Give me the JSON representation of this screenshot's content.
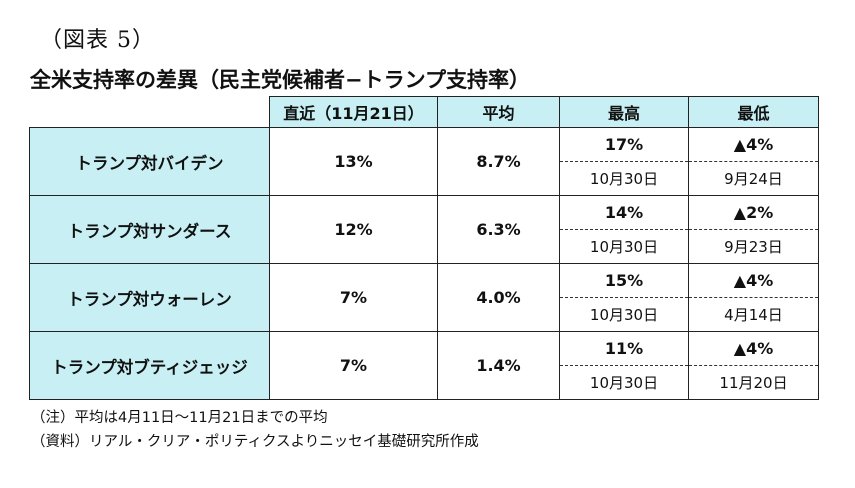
{
  "figure_label": "（図表 5）",
  "table_title": "全米支持率の差異（民主党候補者−トランプ支持率）",
  "headers": {
    "recent": "直近（11月21日）",
    "average": "平均",
    "max": "最高",
    "min": "最低"
  },
  "rows": [
    {
      "candidate": "トランプ対バイデン",
      "recent": "13%",
      "average": "8.7%",
      "max_value": "17%",
      "min_value": "▲4%",
      "max_date": "10月30日",
      "min_date": "9月24日"
    },
    {
      "candidate": "トランプ対サンダース",
      "recent": "12%",
      "average": "6.3%",
      "max_value": "14%",
      "min_value": "▲2%",
      "max_date": "10月30日",
      "min_date": "9月23日"
    },
    {
      "candidate": "トランプ対ウォーレン",
      "recent": "7%",
      "average": "4.0%",
      "max_value": "15%",
      "min_value": "▲4%",
      "max_date": "10月30日",
      "min_date": "4月14日"
    },
    {
      "candidate": "トランプ対ブティジェッジ",
      "recent": "7%",
      "average": "1.4%",
      "max_value": "11%",
      "min_value": "▲4%",
      "max_date": "10月30日",
      "min_date": "11月20日"
    }
  ],
  "notes": {
    "note": "（注）平均は4月11日～11月21日までの平均",
    "source": "（資料）リアル・クリア・ポリティクスよりニッセイ基礎研究所作成"
  }
}
